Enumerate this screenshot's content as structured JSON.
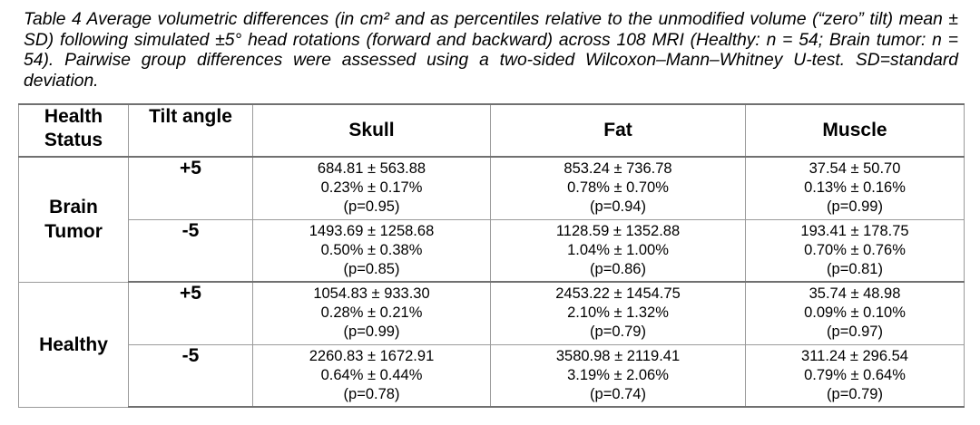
{
  "caption": "Table 4 Average volumetric differences (in cm² and as percentiles relative to the unmodified volume (“zero” tilt) mean ± SD) following simulated ±5° head rotations (forward and backward) across 108 MRI (Healthy: n = 54; Brain tumor: n = 54). Pairwise group differences were assessed using a two-sided Wilcoxon–Mann–Whitney U-test. SD=standard deviation.",
  "headers": {
    "status_line1": "Health",
    "status_line2": "Status",
    "tilt": "Tilt angle",
    "skull": "Skull",
    "fat": "Fat",
    "muscle": "Muscle"
  },
  "groups": [
    {
      "status_line1": "Brain",
      "status_line2": "Tumor",
      "rows": [
        {
          "tilt": "+5",
          "skull": [
            "684.81 ± 563.88",
            "0.23% ± 0.17%",
            "(p=0.95)"
          ],
          "fat": [
            "853.24 ± 736.78",
            "0.78% ± 0.70%",
            "(p=0.94)"
          ],
          "muscle": [
            "37.54 ± 50.70",
            "0.13% ± 0.16%",
            "(p=0.99)"
          ]
        },
        {
          "tilt": "-5",
          "skull": [
            "1493.69 ± 1258.68",
            "0.50% ± 0.38%",
            "(p=0.85)"
          ],
          "fat": [
            "1128.59 ± 1352.88",
            "1.04% ± 1.00%",
            "(p=0.86)"
          ],
          "muscle": [
            "193.41 ± 178.75",
            "0.70% ± 0.76%",
            "(p=0.81)"
          ]
        }
      ]
    },
    {
      "status_line1": "Healthy",
      "status_line2": "",
      "rows": [
        {
          "tilt": "+5",
          "skull": [
            "1054.83 ± 933.30",
            "0.28% ± 0.21%",
            "(p=0.99)"
          ],
          "fat": [
            "2453.22 ± 1454.75",
            "2.10% ± 1.32%",
            "(p=0.79)"
          ],
          "muscle": [
            "35.74 ± 48.98",
            "0.09% ± 0.10%",
            "(p=0.97)"
          ]
        },
        {
          "tilt": "-5",
          "skull": [
            "2260.83 ± 1672.91",
            "0.64% ± 0.44%",
            "(p=0.78)"
          ],
          "fat": [
            "3580.98 ± 2119.41",
            "3.19% ± 2.06%",
            "(p=0.74)"
          ],
          "muscle": [
            "311.24 ± 296.54",
            "0.79% ± 0.64%",
            "(p=0.79)"
          ]
        }
      ]
    }
  ]
}
